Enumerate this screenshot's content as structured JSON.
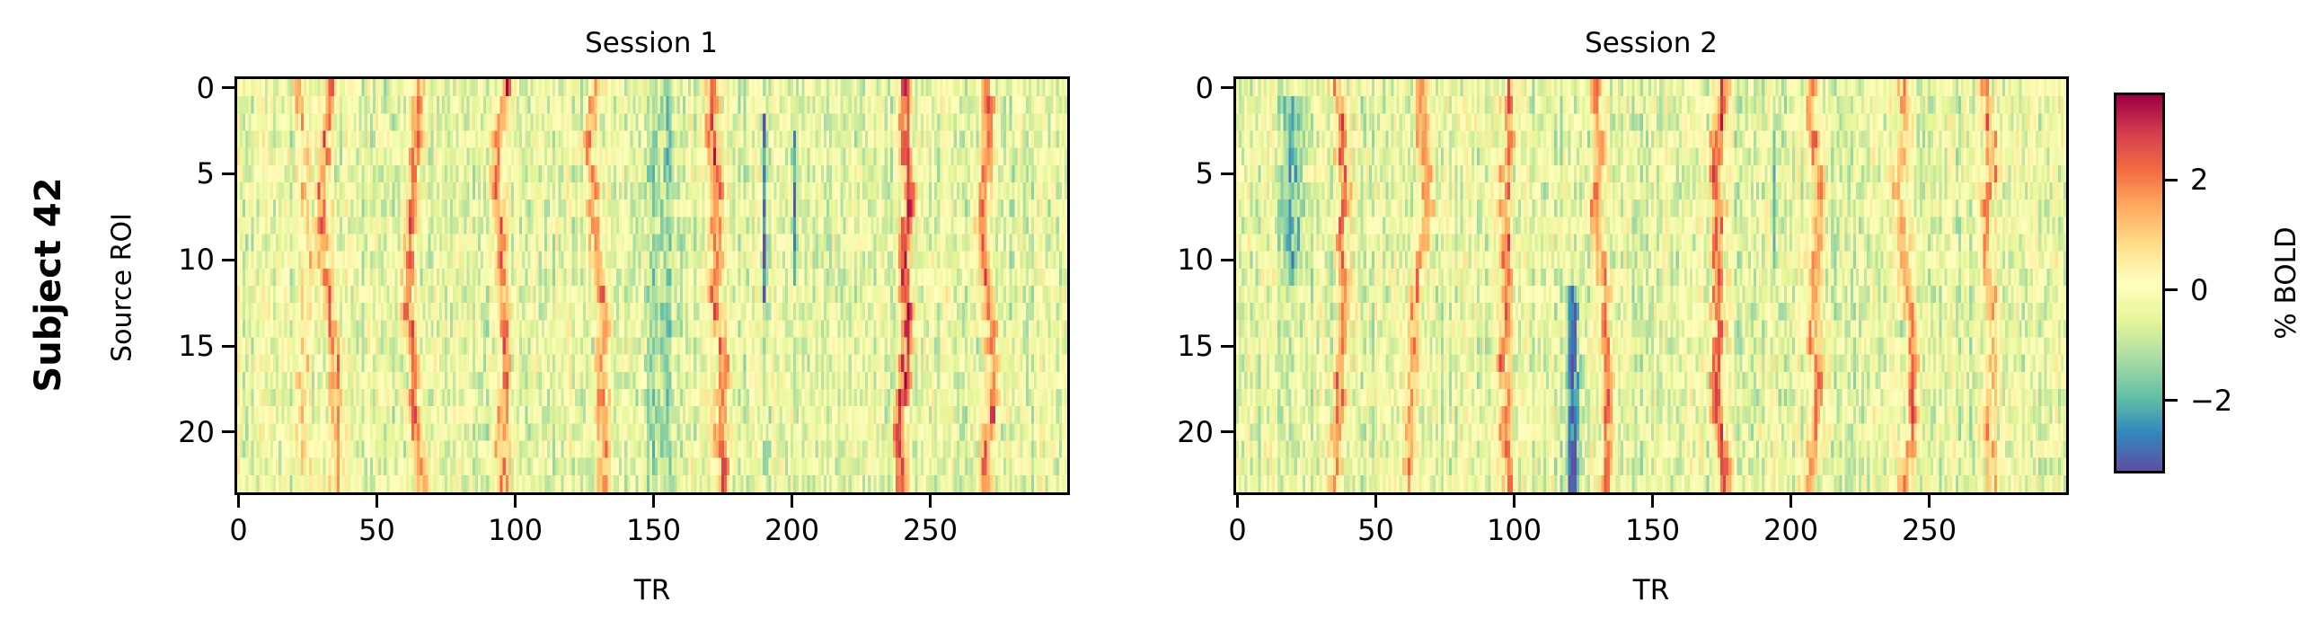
{
  "figure": {
    "row_label": "Subject 42",
    "ylabel": "Source ROI",
    "xlabel": "TR",
    "colorbar_label": "% BOLD",
    "colormap": "Spectral_r"
  },
  "panels": [
    {
      "title": "Session 1",
      "xlabel": "TR",
      "xticks": [
        "0",
        "50",
        "100",
        "150",
        "200",
        "250"
      ],
      "yticks": [
        "0",
        "5",
        "10",
        "15",
        "20"
      ]
    },
    {
      "title": "Session 2",
      "xlabel": "TR",
      "xticks": [
        "0",
        "50",
        "100",
        "150",
        "200",
        "250"
      ],
      "yticks": [
        "0",
        "5",
        "10",
        "15",
        "20"
      ]
    }
  ],
  "colorbar": {
    "ticks": [
      "2",
      "0",
      "−2"
    ],
    "tick_values": [
      2,
      0,
      -2
    ],
    "vmin": -3.27,
    "vmax": 3.53
  },
  "chart_data": [
    {
      "type": "heatmap",
      "title": "Session 1",
      "xlabel": "TR",
      "ylabel": "Source ROI",
      "n_rows": 24,
      "n_cols": 300,
      "x_range": [
        0,
        299
      ],
      "y_range": [
        0,
        23
      ],
      "xticks": [
        0,
        50,
        100,
        150,
        200,
        250
      ],
      "yticks": [
        0,
        5,
        10,
        15,
        20
      ],
      "colorbar_label": "% BOLD",
      "vmin": -3.27,
      "vmax": 3.53,
      "description": "ROI x TR BOLD signal; periodic positive (red) vertical bands with ROI-dependent shifts, noisy background near 0 to -1",
      "positive_band_centers_TR": [
        22,
        33,
        65,
        97,
        128,
        173,
        240,
        270
      ],
      "band_peak_values": [
        1.2,
        2.2,
        2.4,
        2.4,
        2.2,
        2.6,
        2.9,
        2.3
      ],
      "negative_features": [
        {
          "TR_center": 190,
          "rows": [
            2,
            12
          ],
          "value": -2.8,
          "width_TR": 1
        },
        {
          "TR_center": 201,
          "rows": [
            3,
            11
          ],
          "value": -2.4,
          "width_TR": 2
        },
        {
          "TR_center": 153,
          "rows": [
            0,
            23
          ],
          "value": -1.2,
          "width_TR": 10
        }
      ],
      "seed": 42
    },
    {
      "type": "heatmap",
      "title": "Session 2",
      "xlabel": "TR",
      "ylabel": "Source ROI",
      "n_rows": 24,
      "n_cols": 300,
      "x_range": [
        0,
        299
      ],
      "y_range": [
        0,
        23
      ],
      "xticks": [
        0,
        50,
        100,
        150,
        200,
        250
      ],
      "yticks": [
        0,
        5,
        10,
        15,
        20
      ],
      "colorbar_label": "% BOLD",
      "vmin": -3.27,
      "vmax": 3.53,
      "description": "ROI x TR BOLD signal; periodic positive bands, strong negative cluster near TR 118-125 in ROIs 13-23",
      "positive_band_centers_TR": [
        35,
        66,
        100,
        130,
        177,
        208,
        240,
        269
      ],
      "band_peak_values": [
        2.4,
        2.2,
        2.5,
        2.3,
        3.1,
        2.4,
        2.2,
        2.0
      ],
      "negative_features": [
        {
          "TR_center": 121,
          "rows": [
            12,
            23
          ],
          "value": -3.0,
          "width_TR": 4
        },
        {
          "TR_center": 194,
          "rows": [
            1,
            11
          ],
          "value": -1.8,
          "width_TR": 1
        },
        {
          "TR_center": 20,
          "rows": [
            1,
            11
          ],
          "value": -1.4,
          "width_TR": 8
        }
      ],
      "seed": 7
    }
  ]
}
